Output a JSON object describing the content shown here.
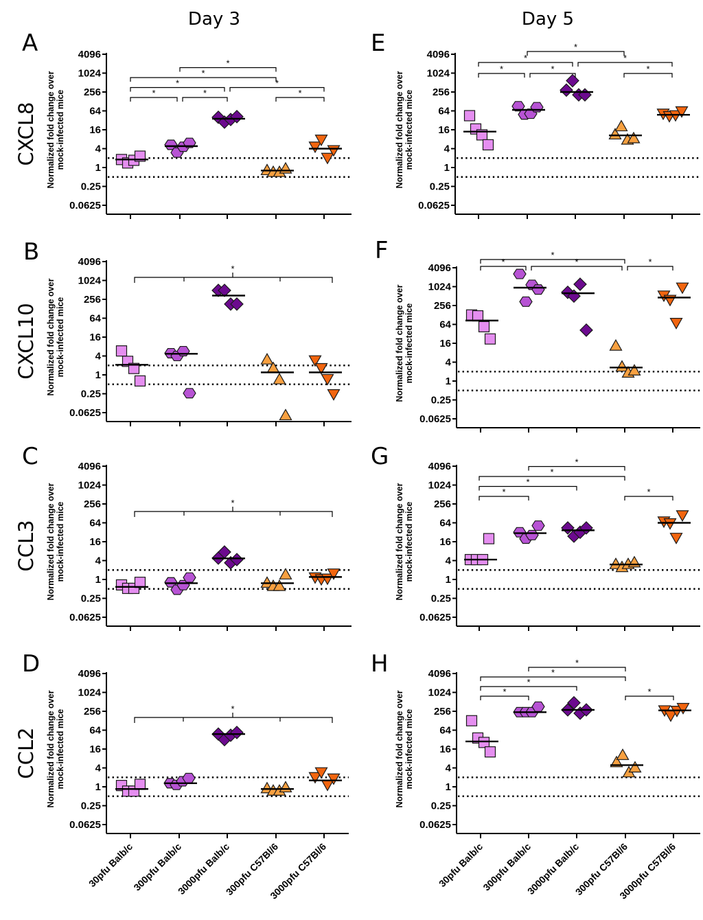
{
  "chart_data": {
    "type": "scatter",
    "title": "",
    "column_titles": [
      "Day 3",
      "Day 5"
    ],
    "ylabel": "Normalized fold change over mock-infected mice",
    "ylabel_lines": [
      "Normalized fold change over",
      "mock-infected mice"
    ],
    "yscale": "log2",
    "ylim": [
      0.0625,
      4096
    ],
    "yticks": [
      "4096",
      "1024",
      "256",
      "64",
      "16",
      "4",
      "1",
      "0.25",
      "0.0625"
    ],
    "ytick_values": [
      4096,
      1024,
      256,
      64,
      16,
      4,
      1,
      0.25,
      0.0625
    ],
    "reference_lines": [
      2,
      0.5
    ],
    "categories": [
      "30pfu Balb/c",
      "300pfu Balb/c",
      "3000pfu Balb/c",
      "300pfu C57Bl/6",
      "3000pfu C57Bl/6"
    ],
    "series_style": [
      {
        "name": "30pfu Balb/c",
        "marker": "square",
        "color": "#e58ef0"
      },
      {
        "name": "300pfu Balb/c",
        "marker": "hexagon",
        "color": "#b753d4"
      },
      {
        "name": "3000pfu Balb/c",
        "marker": "diamond",
        "color": "#6c0a8f"
      },
      {
        "name": "300pfu C57Bl/6",
        "marker": "triangle-up",
        "color": "#f8a040"
      },
      {
        "name": "3000pfu C57Bl/6",
        "marker": "triangle-down",
        "color": "#f2650f"
      }
    ],
    "significance_marker": "*",
    "panels": [
      {
        "id": "A",
        "letter": "A",
        "gene": "CXCL8",
        "day": "Day 3",
        "points": [
          [
            1.8,
            1.4,
            1.7,
            2.3
          ],
          [
            5.3,
            3.0,
            4.6,
            6.1
          ],
          [
            40,
            28,
            34,
            42
          ],
          [
            0.8,
            0.7,
            0.7,
            0.9
          ],
          [
            4.8,
            8.0,
            2.1,
            3.7
          ]
        ],
        "medians": [
          1.8,
          4.8,
          36,
          0.8,
          4.0
        ],
        "brackets": [
          {
            "from": 1,
            "to": 2,
            "level": 1,
            "label": "*"
          },
          {
            "from": 2,
            "to": 3,
            "level": 1,
            "label": "*"
          },
          {
            "from": 4,
            "to": 5,
            "level": 1,
            "label": "*"
          },
          {
            "from": 1,
            "to": 3,
            "level": 2,
            "label": "*"
          },
          {
            "from": 3,
            "to": 5,
            "level": 2,
            "label": "*"
          },
          {
            "from": 1,
            "to": 4,
            "level": 3,
            "label": "*"
          },
          {
            "from": 2,
            "to": 4,
            "level": 4,
            "label": "*"
          }
        ]
      },
      {
        "id": "B",
        "letter": "B",
        "gene": "CXCL10",
        "day": "Day 3",
        "points": [
          [
            5.8,
            2.7,
            1.6,
            0.64
          ],
          [
            4.9,
            4.0,
            5.7,
            0.26
          ],
          [
            494,
            494,
            181,
            181
          ],
          [
            3.0,
            1.6,
            0.7,
            0.05
          ],
          [
            3.0,
            1.7,
            0.76,
            0.25
          ]
        ],
        "medians": [
          2.1,
          4.7,
          338,
          1.2,
          1.2
        ],
        "group_bracket": {
          "center": 3,
          "others": [
            1,
            2,
            4,
            5
          ],
          "label": "*"
        }
      },
      {
        "id": "C",
        "letter": "C",
        "gene": "CCL3",
        "day": "Day 3",
        "points": [
          [
            0.67,
            0.52,
            0.52,
            0.81
          ],
          [
            0.81,
            0.47,
            0.66,
            1.15
          ],
          [
            4.8,
            7.5,
            3.4,
            4.3
          ],
          [
            0.76,
            0.6,
            0.6,
            1.4
          ],
          [
            1.2,
            1.05,
            1.1,
            1.6
          ]
        ],
        "medians": [
          0.58,
          0.76,
          4.7,
          0.76,
          1.2
        ],
        "group_bracket": {
          "center": 3,
          "others": [
            1,
            2,
            4,
            5
          ],
          "label": "*"
        }
      },
      {
        "id": "D",
        "letter": "D",
        "gene": "CCL2",
        "day": "Day 3",
        "points": [
          [
            1.1,
            0.73,
            0.73,
            1.2
          ],
          [
            1.3,
            1.15,
            1.5,
            1.9
          ],
          [
            48,
            32,
            44,
            54
          ],
          [
            0.87,
            0.73,
            0.73,
            0.93
          ],
          [
            2.1,
            3.0,
            1.2,
            1.9
          ]
        ],
        "medians": [
          0.85,
          1.3,
          48,
          0.85,
          1.6
        ],
        "group_bracket": {
          "center": 3,
          "others": [
            1,
            2,
            4,
            5
          ],
          "label": "*"
        }
      },
      {
        "id": "E",
        "letter": "E",
        "gene": "",
        "day": "Day 5",
        "points": [
          [
            45,
            17,
            11,
            5.3
          ],
          [
            90,
            49,
            52,
            84
          ],
          [
            294,
            588,
            208,
            208
          ],
          [
            11,
            20,
            7.5,
            8.3
          ],
          [
            54,
            45,
            48,
            64
          ]
        ],
        "medians": [
          14,
          69,
          256,
          10.6,
          48
        ],
        "brackets": [
          {
            "from": 1,
            "to": 2,
            "level": 1,
            "label": "*"
          },
          {
            "from": 2,
            "to": 3,
            "level": 1,
            "label": "*"
          },
          {
            "from": 4,
            "to": 5,
            "level": 1,
            "label": "*"
          },
          {
            "from": 1,
            "to": 3,
            "level": 2,
            "label": "*"
          },
          {
            "from": 3,
            "to": 5,
            "level": 2,
            "label": "*"
          },
          {
            "from": 2,
            "to": 4,
            "level": 3,
            "label": "*"
          }
        ]
      },
      {
        "id": "F",
        "letter": "F",
        "gene": "",
        "day": "Day 5",
        "points": [
          [
            128,
            120,
            54,
            22
          ],
          [
            2600,
            340,
            1170,
            830
          ],
          [
            676,
            512,
            1220,
            42
          ],
          [
            13,
            2.8,
            1.8,
            2.1
          ],
          [
            550,
            400,
            74,
            990
          ]
        ],
        "medians": [
          85,
          950,
          630,
          2.7,
          460
        ],
        "brackets": [
          {
            "from": 1,
            "to": 2,
            "level": 1,
            "label": "*"
          },
          {
            "from": 2,
            "to": 4,
            "level": 1,
            "label": "*"
          },
          {
            "from": 4,
            "to": 5,
            "level": 1,
            "label": "*"
          },
          {
            "from": 1,
            "to": 4,
            "level": 2,
            "label": "*"
          }
        ]
      },
      {
        "id": "G",
        "letter": "G",
        "gene": "",
        "day": "Day 5",
        "points": [
          [
            4.3,
            4.3,
            4.3,
            20
          ],
          [
            32,
            20,
            26,
            52
          ],
          [
            44,
            24,
            32,
            44
          ],
          [
            3.0,
            2.4,
            3.0,
            3.4
          ],
          [
            73,
            64,
            22,
            115
          ]
        ],
        "medians": [
          4.3,
          30,
          37,
          3.0,
          64
        ],
        "brackets": [
          {
            "from": 1,
            "to": 2,
            "level": 1,
            "label": "*"
          },
          {
            "from": 4,
            "to": 5,
            "level": 1,
            "label": "*"
          },
          {
            "from": 1,
            "to": 3,
            "level": 2,
            "label": "*"
          },
          {
            "from": 1,
            "to": 4,
            "level": 3,
            "label": "*"
          },
          {
            "from": 2,
            "to": 4,
            "level": 4,
            "label": "*"
          }
        ]
      },
      {
        "id": "H",
        "letter": "H",
        "gene": "",
        "day": "Day 5",
        "points": [
          [
            128,
            36,
            26,
            13
          ],
          [
            240,
            240,
            240,
            360
          ],
          [
            284,
            478,
            222,
            284
          ],
          [
            5.9,
            10,
            2.8,
            4.0
          ],
          [
            284,
            194,
            274,
            338
          ]
        ],
        "medians": [
          28,
          240,
          284,
          4.9,
          274
        ],
        "brackets": [
          {
            "from": 1,
            "to": 2,
            "level": 1,
            "label": "*"
          },
          {
            "from": 4,
            "to": 5,
            "level": 1,
            "label": "*"
          },
          {
            "from": 1,
            "to": 3,
            "level": 2,
            "label": "*"
          },
          {
            "from": 1,
            "to": 4,
            "level": 3,
            "label": "*"
          },
          {
            "from": 2,
            "to": 4,
            "level": 4,
            "label": "*"
          }
        ]
      }
    ]
  }
}
